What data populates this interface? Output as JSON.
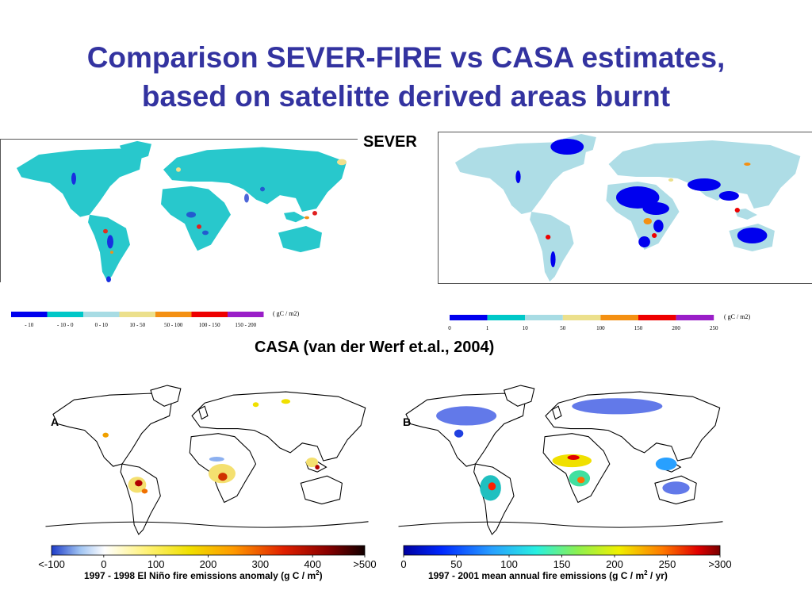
{
  "title_line1": "Comparison SEVER-FIRE vs CASA estimates,",
  "title_line2": "based on satelitte derived areas burnt",
  "label_sever": "SEVER",
  "label_casa": "CASA (van der Werf et.al., 2004)",
  "chart_data": [
    {
      "type": "heatmap",
      "title": "",
      "panel": "",
      "legend": {
        "unit": "( gC / m2)",
        "classes": [
          "- 10",
          "- 10 - 0",
          "0 - 10",
          "10 - 50",
          "50 - 100",
          "100 - 150",
          "150 - 200"
        ],
        "colors": [
          "#0000ee",
          "#00c8c8",
          "#a8dce4",
          "#ece08c",
          "#f49012",
          "#ee0000",
          "#9a1ec8"
        ]
      }
    },
    {
      "type": "heatmap",
      "title": "",
      "panel": "",
      "legend": {
        "unit": "( gC / m2)",
        "ticks": [
          "0",
          "1",
          "10",
          "50",
          "100",
          "150",
          "200",
          "250"
        ],
        "colors": [
          "#0000ee",
          "#00c8c8",
          "#a8dce4",
          "#ece08c",
          "#f49012",
          "#ee0000",
          "#9a1ec8"
        ]
      }
    },
    {
      "type": "heatmap",
      "panel": "A",
      "colorbar": {
        "caption": "1997 - 1998 El Niño fire emissions anomaly (g C / m",
        "caption_sup": "2",
        "caption_end": ")",
        "ticks": [
          "<-100",
          "0",
          "100",
          "200",
          "300",
          "400",
          ">500"
        ],
        "range": [
          -100,
          500
        ]
      }
    },
    {
      "type": "heatmap",
      "panel": "B",
      "colorbar": {
        "caption": "1997 - 2001 mean annual fire emissions (g C / m",
        "caption_sup": "2",
        "caption_end": " / yr)",
        "ticks": [
          "0",
          "50",
          "100",
          "150",
          "200",
          "250",
          ">300"
        ],
        "range": [
          0,
          300
        ]
      }
    }
  ]
}
